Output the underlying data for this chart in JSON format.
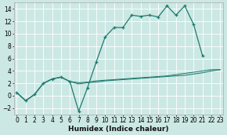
{
  "title": "",
  "xlabel": "Humidex (Indice chaleur)",
  "ylabel": "",
  "background_color": "#cce8e4",
  "grid_color": "#b8d8d4",
  "line_color": "#1e7b70",
  "x_values": [
    0,
    1,
    2,
    3,
    4,
    5,
    6,
    7,
    8,
    9,
    10,
    11,
    12,
    13,
    14,
    15,
    16,
    17,
    18,
    19,
    20,
    21,
    22,
    23
  ],
  "line1_y": [
    0.5,
    -0.8,
    0.2,
    2.0,
    2.7,
    3.0,
    2.3,
    -2.5,
    1.3,
    5.5,
    9.5,
    11.0,
    11.0,
    13.0,
    12.8,
    13.0,
    12.7,
    14.5,
    13.0,
    14.5,
    11.5,
    6.5,
    null,
    null
  ],
  "line2_y": [
    0.5,
    -0.8,
    0.2,
    2.0,
    2.7,
    3.0,
    2.3,
    2.1,
    2.2,
    2.4,
    2.5,
    2.6,
    2.7,
    2.8,
    2.9,
    3.0,
    3.1,
    3.2,
    3.4,
    3.6,
    3.8,
    4.0,
    4.2,
    4.2
  ],
  "line3_y": [
    0.5,
    -0.8,
    0.2,
    2.0,
    2.7,
    3.0,
    2.3,
    1.9,
    2.1,
    2.2,
    2.4,
    2.5,
    2.6,
    2.7,
    2.8,
    2.9,
    3.0,
    3.1,
    3.2,
    3.3,
    3.5,
    3.7,
    4.0,
    4.2
  ],
  "ylim": [
    -3.0,
    15.0
  ],
  "xlim": [
    -0.3,
    23.3
  ],
  "yticks": [
    -2,
    0,
    2,
    4,
    6,
    8,
    10,
    12,
    14
  ],
  "xticks": [
    0,
    1,
    2,
    3,
    4,
    5,
    6,
    7,
    8,
    9,
    10,
    11,
    12,
    13,
    14,
    15,
    16,
    17,
    18,
    19,
    20,
    21,
    22,
    23
  ]
}
